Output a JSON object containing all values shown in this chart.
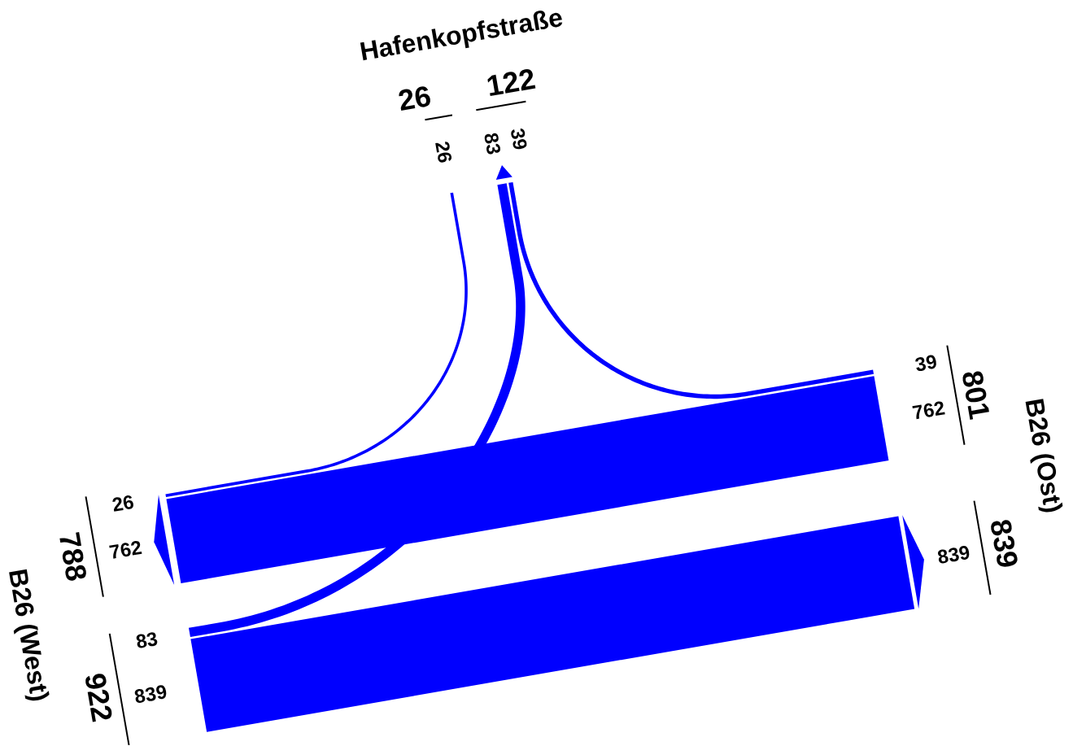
{
  "chart_data": {
    "type": "other",
    "categories": [
      "Hafenkopfstraße",
      "B26 (Ost)",
      "B26 (West)"
    ],
    "series": [
      {
        "color": "#0000ff",
        "values": [
          null,
          null,
          26
        ]
      },
      {
        "color": "#0000ff",
        "values": [
          39,
          null,
          762
        ]
      },
      {
        "color": "#0000ff",
        "values": [
          83,
          839,
          null
        ]
      }
    ],
    "totals": [
      [
        "26",
        "122"
      ],
      [
        "801",
        "839"
      ],
      [
        "922",
        "788"
      ]
    ],
    "annotations": [
      "26",
      "39",
      "762",
      "83",
      "839"
    ],
    "data_labels": true
  }
}
